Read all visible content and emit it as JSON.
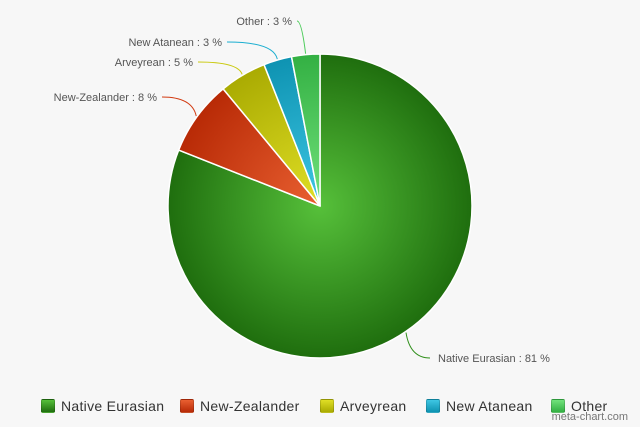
{
  "chart_data": {
    "type": "pie",
    "slices": [
      {
        "label": "Native Eurasian",
        "value": 81,
        "color": "#2f8f1a",
        "light": "#56c03a",
        "dark": "#1f6e0e"
      },
      {
        "label": "New-Zealander",
        "value": 8,
        "color": "#d23b12",
        "light": "#e96031",
        "dark": "#b82a06"
      },
      {
        "label": "Arveyrean",
        "value": 5,
        "color": "#c9c90c",
        "light": "#e0df25",
        "dark": "#aaab02"
      },
      {
        "label": "New Atanean",
        "value": 3,
        "color": "#1aaed0",
        "light": "#3ec6e3",
        "dark": "#0e93b2"
      },
      {
        "label": "Other",
        "value": 3,
        "color": "#4ccc5a",
        "light": "#72e27c",
        "dark": "#33b043"
      }
    ],
    "data_labels": [
      "Native Eurasian : 81 %",
      "New-Zealander : 8 %",
      "Arveyrean : 5 %",
      "New Atanean : 3 %",
      "Other : 3 %"
    ],
    "legend_position": "bottom"
  },
  "legend": {
    "items": [
      "Native Eurasian",
      "New-Zealander",
      "Arveyrean",
      "New Atanean",
      "Other"
    ]
  },
  "credit": "meta-chart.com"
}
